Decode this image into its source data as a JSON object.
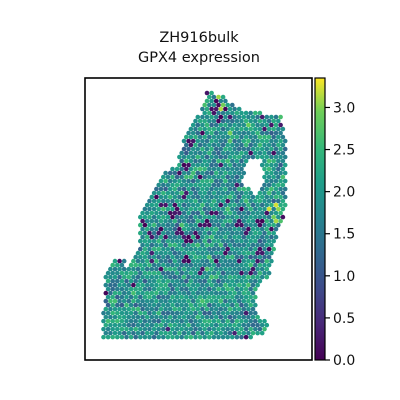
{
  "chart_data": {
    "type": "scatter",
    "title": "ZH916bulk",
    "subtitle": "GPX4 expression",
    "xlabel": "",
    "ylabel": "",
    "colormap": "viridis",
    "color_range": [
      0.0,
      3.35
    ],
    "colorbar_ticks": [
      "0.0",
      "0.5",
      "1.0",
      "1.5",
      "2.0",
      "2.5",
      "3.0"
    ],
    "colorbar_tick_values": [
      0.0,
      0.5,
      1.0,
      1.5,
      2.0,
      2.5,
      3.0
    ],
    "grid": false,
    "legend": "colorbar-right",
    "typical_value": 1.9,
    "spot_grid_pitch": 4.6,
    "tissue_region": [
      [
        0.55,
        0.02
      ],
      [
        0.62,
        0.04
      ],
      [
        0.7,
        0.09
      ],
      [
        0.9,
        0.12
      ],
      [
        0.92,
        0.2
      ],
      [
        0.92,
        0.48
      ],
      [
        0.88,
        0.56
      ],
      [
        0.86,
        0.66
      ],
      [
        0.84,
        0.72
      ],
      [
        0.79,
        0.76
      ],
      [
        0.78,
        0.86
      ],
      [
        0.84,
        0.9
      ],
      [
        0.84,
        0.93
      ],
      [
        0.75,
        0.95
      ],
      [
        0.4,
        0.96
      ],
      [
        0.05,
        0.96
      ],
      [
        0.06,
        0.7
      ],
      [
        0.12,
        0.65
      ],
      [
        0.15,
        0.65
      ],
      [
        0.17,
        0.7
      ],
      [
        0.22,
        0.62
      ],
      [
        0.22,
        0.5
      ],
      [
        0.28,
        0.42
      ],
      [
        0.33,
        0.34
      ],
      [
        0.4,
        0.3
      ],
      [
        0.45,
        0.18
      ],
      [
        0.52,
        0.1
      ]
    ],
    "hollow_region": [
      [
        0.74,
        0.28
      ],
      [
        0.8,
        0.28
      ],
      [
        0.82,
        0.36
      ],
      [
        0.77,
        0.42
      ],
      [
        0.72,
        0.36
      ]
    ],
    "low_expression_spots": [
      [
        0.6,
        0.07
      ],
      [
        0.63,
        0.09
      ],
      [
        0.65,
        0.12
      ],
      [
        0.58,
        0.1
      ],
      [
        0.61,
        0.13
      ],
      [
        0.32,
        0.28
      ],
      [
        0.34,
        0.26
      ],
      [
        0.38,
        0.29
      ],
      [
        0.42,
        0.33
      ],
      [
        0.45,
        0.31
      ],
      [
        0.3,
        0.42
      ],
      [
        0.34,
        0.45
      ],
      [
        0.38,
        0.49
      ],
      [
        0.4,
        0.47
      ],
      [
        0.44,
        0.41
      ],
      [
        0.25,
        0.52
      ],
      [
        0.28,
        0.56
      ],
      [
        0.32,
        0.55
      ],
      [
        0.36,
        0.57
      ],
      [
        0.41,
        0.55
      ],
      [
        0.46,
        0.58
      ],
      [
        0.5,
        0.56
      ],
      [
        0.55,
        0.52
      ],
      [
        0.58,
        0.48
      ],
      [
        0.62,
        0.45
      ],
      [
        0.7,
        0.52
      ],
      [
        0.74,
        0.55
      ],
      [
        0.8,
        0.52
      ],
      [
        0.83,
        0.48
      ],
      [
        0.86,
        0.54
      ],
      [
        0.64,
        0.62
      ],
      [
        0.6,
        0.66
      ],
      [
        0.45,
        0.65
      ],
      [
        0.52,
        0.7
      ],
      [
        0.7,
        0.66
      ],
      [
        0.28,
        0.36
      ],
      [
        0.47,
        0.22
      ],
      [
        0.52,
        0.18
      ],
      [
        0.8,
        0.62
      ],
      [
        0.76,
        0.7
      ]
    ],
    "high_expression_spots": [
      [
        0.52,
        0.06
      ],
      [
        0.6,
        0.05
      ],
      [
        0.62,
        0.08
      ],
      [
        0.88,
        0.46
      ],
      [
        0.87,
        0.5
      ],
      [
        0.84,
        0.47
      ],
      [
        0.65,
        0.18
      ],
      [
        0.75,
        0.15
      ]
    ]
  }
}
